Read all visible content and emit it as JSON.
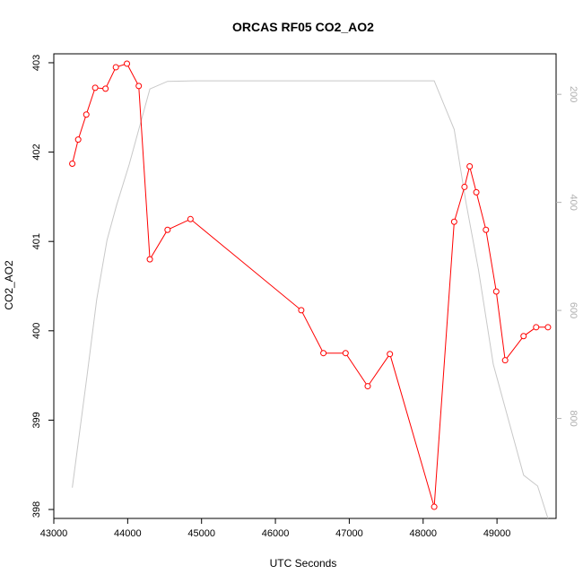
{
  "chart_data": {
    "type": "line",
    "title": "ORCAS RF05 CO2_AO2",
    "xlabel": "UTC Seconds",
    "ylabel": "CO2_AO2",
    "xlim": [
      43000,
      49800
    ],
    "ylim": [
      397.9,
      403.1
    ],
    "y2lim": [
      125,
      985
    ],
    "y2_reversed": true,
    "x_ticks": [
      43000,
      44000,
      45000,
      46000,
      47000,
      48000,
      49000
    ],
    "y_ticks": [
      398,
      399,
      400,
      401,
      402,
      403
    ],
    "y2_ticks": [
      200,
      400,
      600,
      800
    ],
    "grid": false,
    "series": [
      {
        "color": "#ff0000",
        "axis": "left",
        "marker": "open-circle",
        "x": [
          43250,
          43330,
          43440,
          43560,
          43700,
          43840,
          43990,
          44150,
          44300,
          44540,
          44850,
          46350,
          46650,
          46950,
          47250,
          47550,
          48150,
          48420,
          48560,
          48630,
          48720,
          48850,
          48990,
          49110,
          49360,
          49530,
          49690
        ],
        "y": [
          401.87,
          402.14,
          402.42,
          402.72,
          402.71,
          402.95,
          402.99,
          402.74,
          400.8,
          401.13,
          401.25,
          400.23,
          399.75,
          399.75,
          399.38,
          399.74,
          398.03,
          401.22,
          401.61,
          401.84,
          401.55,
          401.13,
          400.44,
          399.67,
          399.94,
          400.04,
          400.04
        ]
      },
      {
        "color": "#c8c8c8",
        "axis": "right",
        "marker": "none",
        "x": [
          43250,
          43450,
          43580,
          43720,
          43850,
          44020,
          44300,
          44540,
          44900,
          46000,
          47500,
          48150,
          48420,
          48580,
          48750,
          48950,
          49150,
          49360,
          49550,
          49690
        ],
        "y": [
          928,
          720,
          580,
          470,
          405,
          330,
          190,
          176,
          175,
          175,
          175,
          175,
          265,
          400,
          525,
          700,
          800,
          905,
          925,
          985
        ]
      }
    ]
  }
}
